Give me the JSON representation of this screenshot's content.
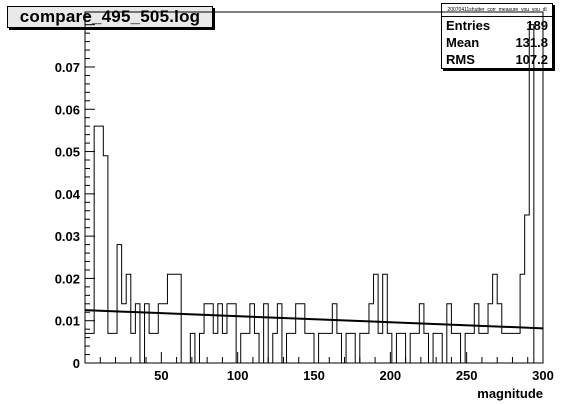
{
  "title": "compare_495_505.log",
  "stats": {
    "header": "20070411shutter_corr_measure_you_you_dl",
    "rows": [
      {
        "label": "Entries",
        "value": "189"
      },
      {
        "label": "Mean",
        "value": "131.8"
      },
      {
        "label": "RMS",
        "value": "107.2"
      }
    ]
  },
  "chart_data": {
    "type": "histogram",
    "title": "compare_495_505.log",
    "xlabel": "magnitude",
    "ylabel": "",
    "xlim": [
      0,
      300
    ],
    "ylim": [
      0,
      0.083
    ],
    "x_ticks": [
      {
        "value": 50,
        "label": "50"
      },
      {
        "value": 100,
        "label": "100"
      },
      {
        "value": 150,
        "label": "150"
      },
      {
        "value": 200,
        "label": "200"
      },
      {
        "value": 250,
        "label": "250"
      },
      {
        "value": 300,
        "label": "300"
      }
    ],
    "y_ticks": [
      {
        "value": 0,
        "label": "0"
      },
      {
        "value": 0.01,
        "label": "0.01"
      },
      {
        "value": 0.02,
        "label": "0.02"
      },
      {
        "value": 0.03,
        "label": "0.03"
      },
      {
        "value": 0.04,
        "label": "0.04"
      },
      {
        "value": 0.05,
        "label": "0.05"
      },
      {
        "value": 0.06,
        "label": "0.06"
      },
      {
        "value": 0.07,
        "label": "0.07"
      }
    ],
    "bin_edges_start": 0,
    "bin_width": 3,
    "values": [
      0.007,
      0.007,
      0.056,
      0.056,
      0.049,
      0.007,
      0.007,
      0.028,
      0.014,
      0.021,
      0.007,
      0.014,
      0.0,
      0.014,
      0.007,
      0.007,
      0.014,
      0.014,
      0.021,
      0.021,
      0.021,
      0.0,
      0.0,
      0.007,
      0.0,
      0.007,
      0.014,
      0.014,
      0.007,
      0.014,
      0.007,
      0.014,
      0.014,
      0.0,
      0.007,
      0.007,
      0.014,
      0.007,
      0.0,
      0.014,
      0.0,
      0.007,
      0.014,
      0.0,
      0.007,
      0.007,
      0.014,
      0.014,
      0.007,
      0.007,
      0.0,
      0.007,
      0.007,
      0.007,
      0.014,
      0.007,
      0.0,
      0.007,
      0.007,
      0.0,
      0.007,
      0.007,
      0.014,
      0.021,
      0.007,
      0.021,
      0.007,
      0.0,
      0.007,
      0.007,
      0.0,
      0.007,
      0.007,
      0.014,
      0.007,
      0.0,
      0.007,
      0.007,
      0.0,
      0.014,
      0.007,
      0.007,
      0.0,
      0.007,
      0.007,
      0.014,
      0.007,
      0.007,
      0.014,
      0.021,
      0.014,
      0.007,
      0.007,
      0.007,
      0.007,
      0.021,
      0.035,
      0.08
    ],
    "fit": {
      "type": "line",
      "points": [
        [
          0,
          0.0125
        ],
        [
          300,
          0.0082
        ]
      ]
    }
  }
}
